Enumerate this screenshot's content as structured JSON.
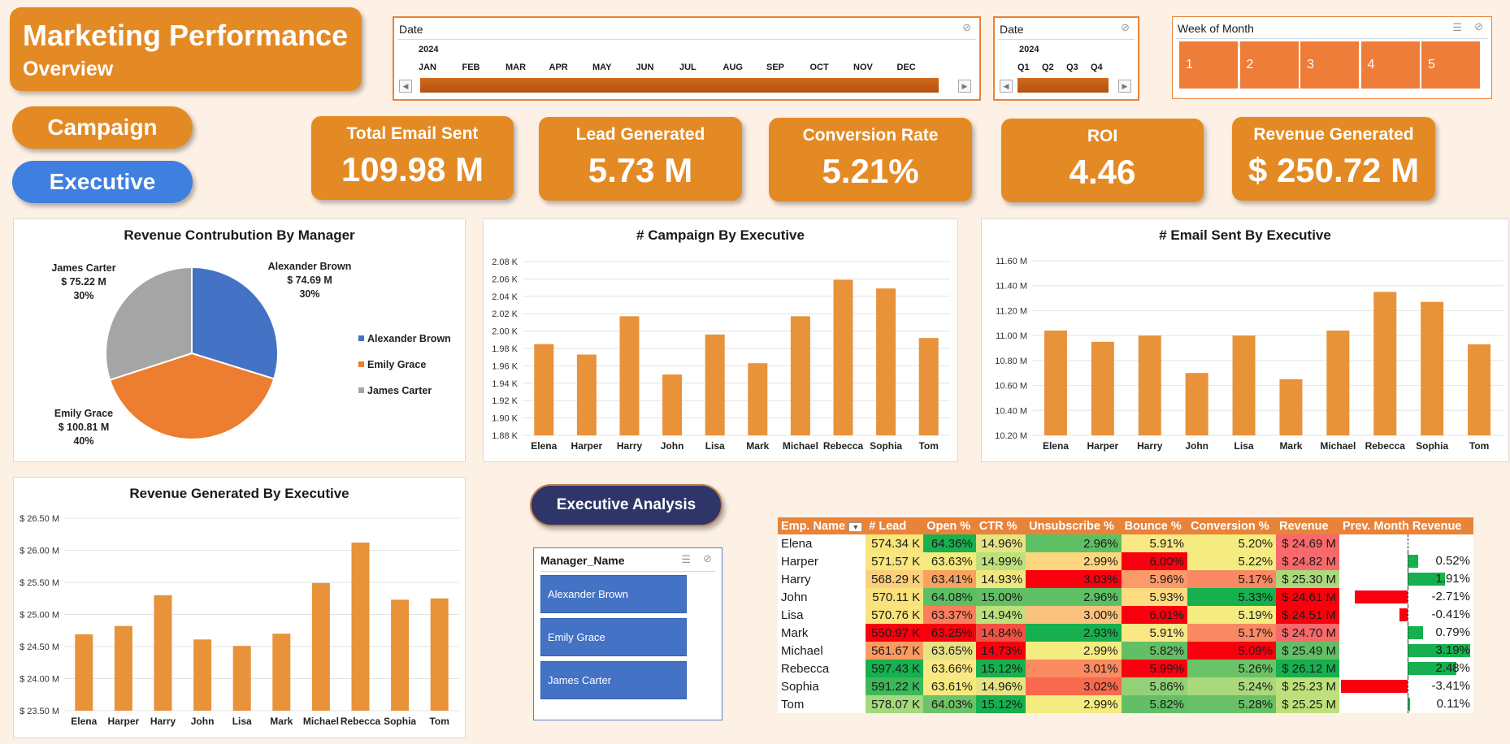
{
  "header": {
    "title": "Marketing Performance",
    "subtitle": "Overview"
  },
  "nav": {
    "campaign": "Campaign",
    "executive": "Executive",
    "executive_analysis": "Executive Analysis"
  },
  "kpis": [
    {
      "label": "Total Email Sent",
      "value": "109.98 M"
    },
    {
      "label": "Lead Generated",
      "value": "5.73 M"
    },
    {
      "label": "Conversion Rate",
      "value": "5.21%"
    },
    {
      "label": "ROI",
      "value": "4.46"
    },
    {
      "label": "Revenue Generated",
      "value": "$ 250.72 M"
    }
  ],
  "timeline_month": {
    "header": "Date",
    "year": "2024",
    "periods": [
      "JAN",
      "FEB",
      "MAR",
      "APR",
      "MAY",
      "JUN",
      "JUL",
      "AUG",
      "SEP",
      "OCT",
      "NOV",
      "DEC"
    ]
  },
  "timeline_quarter": {
    "header": "Date",
    "year": "2024",
    "periods": [
      "Q1",
      "Q2",
      "Q3",
      "Q4"
    ]
  },
  "week_slicer": {
    "header": "Week of Month",
    "items": [
      "1",
      "2",
      "3",
      "4",
      "5"
    ]
  },
  "manager_slicer": {
    "header": "Manager_Name",
    "items": [
      "Alexander Brown",
      "Emily Grace",
      "James Carter"
    ]
  },
  "colors": {
    "accent": "#e48a24",
    "bar": "#e8923a",
    "pie_blue": "#4472c4",
    "pie_orange": "#ed7d31",
    "pie_gray": "#a5a5a5"
  },
  "chart_data": [
    {
      "type": "pie",
      "title": "Revenue Contrubution By Manager",
      "slices": [
        {
          "name": "Alexander Brown",
          "value": 74.69,
          "value_label": "$ 74.69 M",
          "percent": "30%",
          "color": "#4472c4"
        },
        {
          "name": "Emily Grace",
          "value": 100.81,
          "value_label": "$ 100.81 M",
          "percent": "40%",
          "color": "#ed7d31"
        },
        {
          "name": "James Carter",
          "value": 75.22,
          "value_label": "$ 75.22 M",
          "percent": "30%",
          "color": "#a5a5a5"
        }
      ],
      "legend": [
        "Alexander Brown",
        "Emily Grace",
        "James Carter"
      ]
    },
    {
      "type": "bar",
      "title": "# Campaign By Executive",
      "categories": [
        "Elena",
        "Harper",
        "Harry",
        "John",
        "Lisa",
        "Mark",
        "Michael",
        "Rebecca",
        "Sophia",
        "Tom"
      ],
      "values": [
        1.985,
        1.973,
        2.017,
        1.95,
        1.996,
        1.963,
        2.017,
        2.059,
        2.049,
        1.992
      ],
      "ylim": [
        1.88,
        2.08
      ],
      "yticks": [
        "1.88 K",
        "1.90 K",
        "1.92 K",
        "1.94 K",
        "1.96 K",
        "1.98 K",
        "2.00 K",
        "2.02 K",
        "2.04 K",
        "2.06 K",
        "2.08 K"
      ]
    },
    {
      "type": "bar",
      "title": "# Email Sent By Executive",
      "categories": [
        "Elena",
        "Harper",
        "Harry",
        "John",
        "Lisa",
        "Mark",
        "Michael",
        "Rebecca",
        "Sophia",
        "Tom"
      ],
      "values": [
        11.04,
        10.95,
        11.0,
        10.7,
        11.0,
        10.65,
        11.04,
        11.35,
        11.27,
        10.93
      ],
      "ylim": [
        10.2,
        11.6
      ],
      "yticks": [
        "10.20 M",
        "10.40 M",
        "10.60 M",
        "10.80 M",
        "11.00 M",
        "11.20 M",
        "11.40 M",
        "11.60 M"
      ]
    },
    {
      "type": "bar",
      "title": "Revenue Generated By Executive",
      "categories": [
        "Elena",
        "Harper",
        "Harry",
        "John",
        "Lisa",
        "Mark",
        "Michael",
        "Rebecca",
        "Sophia",
        "Tom"
      ],
      "values": [
        24.69,
        24.82,
        25.3,
        24.61,
        24.51,
        24.7,
        25.49,
        26.12,
        25.23,
        25.25
      ],
      "ylim": [
        23.5,
        26.5
      ],
      "yticks": [
        "$ 23.50 M",
        "$ 24.00 M",
        "$ 24.50 M",
        "$ 25.00 M",
        "$ 25.50 M",
        "$ 26.00 M",
        "$ 26.50 M"
      ]
    },
    {
      "type": "table",
      "columns": [
        "Emp. Name",
        "# Lead",
        "Open %",
        "CTR %",
        "Unsubscribe %",
        "Bounce %",
        "Conversion %",
        "Revenue",
        "Prev. Month Revenue"
      ],
      "rows": [
        [
          "Elena",
          "574.34 K",
          "64.36%",
          "14.96%",
          "2.96%",
          "5.91%",
          "5.20%",
          "$ 24.69 M",
          ""
        ],
        [
          "Harper",
          "571.57 K",
          "63.63%",
          "14.99%",
          "2.99%",
          "6.00%",
          "5.22%",
          "$ 24.82 M",
          "0.52%"
        ],
        [
          "Harry",
          "568.29 K",
          "63.41%",
          "14.93%",
          "3.03%",
          "5.96%",
          "5.17%",
          "$ 25.30 M",
          "1.91%"
        ],
        [
          "John",
          "570.11 K",
          "64.08%",
          "15.00%",
          "2.96%",
          "5.93%",
          "5.33%",
          "$ 24.61 M",
          "-2.71%"
        ],
        [
          "Lisa",
          "570.76 K",
          "63.37%",
          "14.94%",
          "3.00%",
          "6.01%",
          "5.19%",
          "$ 24.51 M",
          "-0.41%"
        ],
        [
          "Mark",
          "550.97 K",
          "63.25%",
          "14.84%",
          "2.93%",
          "5.91%",
          "5.17%",
          "$ 24.70 M",
          "0.79%"
        ],
        [
          "Michael",
          "561.67 K",
          "63.65%",
          "14.73%",
          "2.99%",
          "5.82%",
          "5.09%",
          "$ 25.49 M",
          "3.19%"
        ],
        [
          "Rebecca",
          "597.43 K",
          "63.66%",
          "15.12%",
          "3.01%",
          "5.99%",
          "5.26%",
          "$ 26.12 M",
          "2.48%"
        ],
        [
          "Sophia",
          "591.22 K",
          "63.61%",
          "14.96%",
          "3.02%",
          "5.86%",
          "5.24%",
          "$ 25.23 M",
          "-3.41%"
        ],
        [
          "Tom",
          "578.07 K",
          "64.03%",
          "15.12%",
          "2.99%",
          "5.82%",
          "5.28%",
          "$ 25.25 M",
          "0.11%"
        ]
      ],
      "prev_month_change": [
        null,
        0.52,
        1.91,
        -2.71,
        -0.41,
        0.79,
        3.19,
        2.48,
        -3.41,
        0.11
      ],
      "cell_colors": [
        [
          "#fff",
          "#f8e67c",
          "#19b050",
          "#e6e383",
          "#5dc064",
          "#f9e884",
          "#f5ec81",
          "#f8696b"
        ],
        [
          "#fff",
          "#f8e680",
          "#f5ea7e",
          "#bde07a",
          "#fed67f",
          "#f8000e",
          "#f5ec81",
          "#f8696b"
        ],
        [
          "#fff",
          "#fbd07d",
          "#f8a25f",
          "#f1e57f",
          "#f8000e",
          "#fc9a69",
          "#f88963",
          "#a9d97c"
        ],
        [
          "#fff",
          "#f9e27c",
          "#5cc062",
          "#63bf66",
          "#5dc064",
          "#fedb80",
          "#17b04f",
          "#f8000e"
        ],
        [
          "#fff",
          "#f9e37c",
          "#fb7f5c",
          "#bde07a",
          "#fbc27d",
          "#f8000e",
          "#f5ec81",
          "#f8000e"
        ],
        [
          "#fff",
          "#f8000e",
          "#f8000e",
          "#f45041",
          "#17b04f",
          "#f9e884",
          "#f88963",
          "#f8696b"
        ],
        [
          "#fff",
          "#fb9a5e",
          "#e6e383",
          "#f8000e",
          "#f5ec81",
          "#63bf66",
          "#f8000e",
          "#63bf66"
        ],
        [
          "#fff",
          "#17b04f",
          "#fae884",
          "#17b04f",
          "#fb8b60",
          "#f8000e",
          "#6ac366",
          "#17b04f"
        ],
        [
          "#fff",
          "#3cb85a",
          "#f5ea7e",
          "#e6e383",
          "#f8694e",
          "#92d178",
          "#a9d97c",
          "#bde07a"
        ],
        [
          "#fff",
          "#a4d97c",
          "#6dc368",
          "#17b04f",
          "#f5ec81",
          "#63bf66",
          "#68c167",
          "#bde07a"
        ]
      ]
    }
  ]
}
